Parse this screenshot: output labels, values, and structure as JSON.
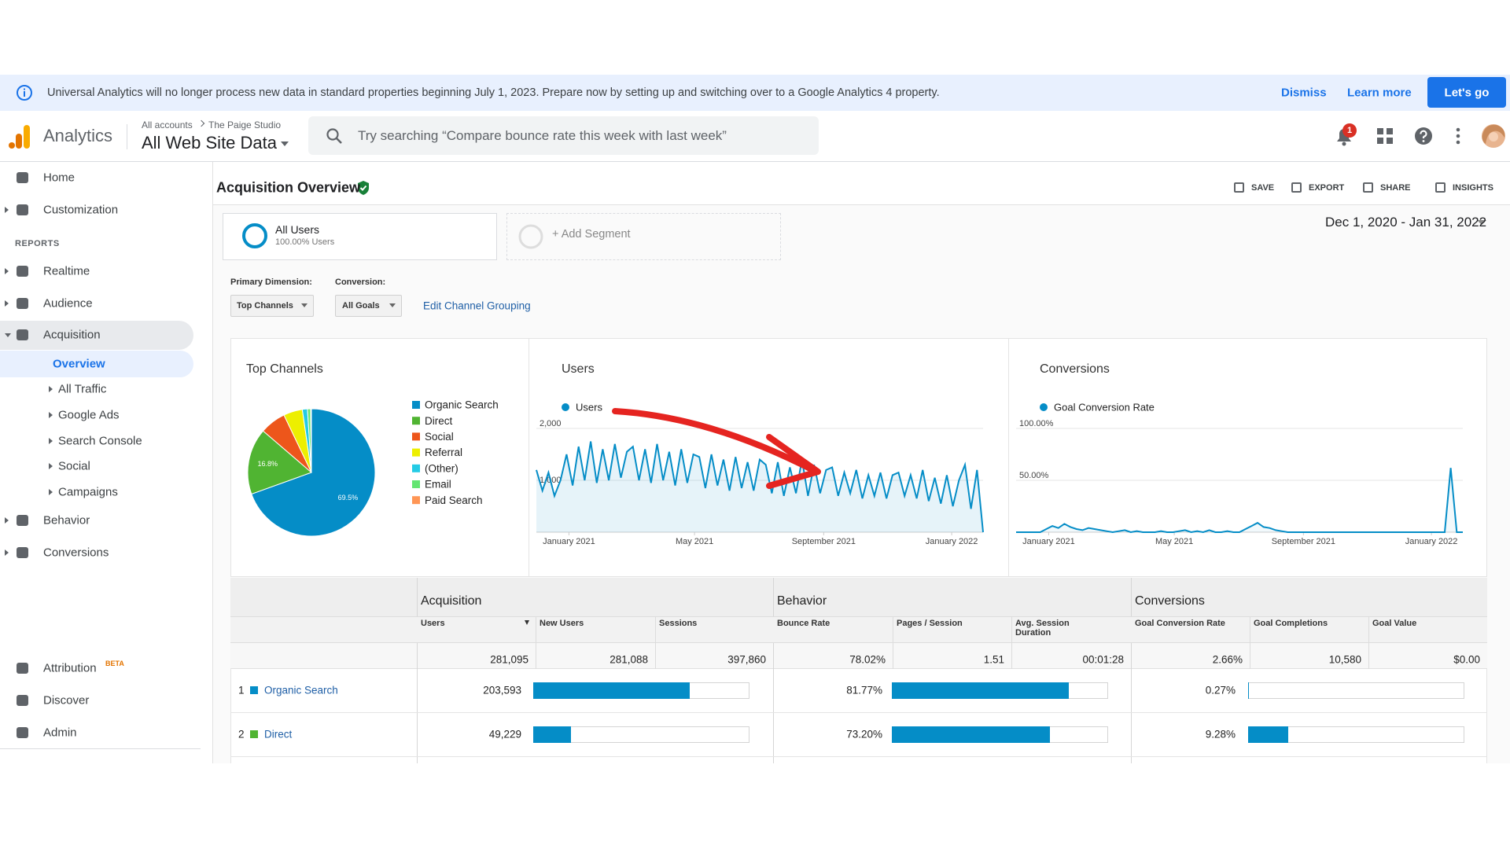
{
  "banner": {
    "message": "Universal Analytics will no longer process new data in standard properties beginning July 1, 2023. Prepare now by setting up and switching over to a Google Analytics 4 property.",
    "dismiss": "Dismiss",
    "learn_more": "Learn more",
    "cta": "Let's go"
  },
  "header": {
    "product": "Analytics",
    "breadcrumb": [
      "All accounts",
      "The Paige Studio"
    ],
    "property": "All Web Site Data",
    "search_placeholder": "Try searching “Compare bounce rate this week with last week”",
    "notification_count": 1
  },
  "sidebar": {
    "top": [
      "Home",
      "Customization"
    ],
    "section": "REPORTS",
    "reports": [
      "Realtime",
      "Audience",
      "Acquisition"
    ],
    "acquisition_children": [
      "Overview",
      "All Traffic",
      "Google Ads",
      "Search Console",
      "Social",
      "Campaigns"
    ],
    "more_reports": [
      "Behavior",
      "Conversions"
    ],
    "bottom": [
      "Attribution",
      "Discover",
      "Admin"
    ],
    "badge": "BETA"
  },
  "report": {
    "title": "Acquisition Overview",
    "actions": [
      "SAVE",
      "EXPORT",
      "SHARE",
      "INSIGHTS"
    ],
    "date_range": "Dec 1, 2020 - Jan 31, 2022",
    "segment": {
      "name": "All Users",
      "detail": "100.00% Users"
    },
    "add_segment": "+ Add Segment",
    "primary_dimension": {
      "label": "Primary Dimension:",
      "value": "Top Channels"
    },
    "conversion": {
      "label": "Conversion:",
      "value": "All Goals"
    },
    "edit_link": "Edit Channel Grouping"
  },
  "chart_data": [
    {
      "type": "pie",
      "title": "Top Channels",
      "categories": [
        "Organic Search",
        "Direct",
        "Social",
        "Referral",
        "(Other)",
        "Email",
        "Paid Search"
      ],
      "values": [
        69.5,
        16.8,
        6.6,
        4.8,
        1.3,
        0.8,
        0.2
      ],
      "value_labels": [
        "69.5%",
        "16.8%",
        null,
        null,
        null,
        null,
        null
      ],
      "colors": [
        "#058dc7",
        "#50b432",
        "#ed561b",
        "#edef00",
        "#24cbe5",
        "#64e572",
        "#ff9655"
      ]
    },
    {
      "type": "line",
      "title": "Users",
      "series": [
        {
          "name": "Users",
          "color": "#058dc7",
          "values": [
            1200,
            800,
            1150,
            700,
            1000,
            1500,
            900,
            1650,
            1000,
            1750,
            950,
            1600,
            1000,
            1700,
            1050,
            1550,
            1650,
            1000,
            1600,
            950,
            1700,
            1000,
            1550,
            900,
            1600,
            950,
            1500,
            1450,
            850,
            1500,
            900,
            1400,
            800,
            1450,
            850,
            1350,
            800,
            1400,
            1300,
            750,
            1350,
            700,
            1250,
            750,
            1400,
            700,
            1300,
            750,
            1200,
            1250,
            700,
            1150,
            750,
            1200,
            650,
            1100,
            700,
            1150,
            650,
            1100,
            1150,
            700,
            1100,
            650,
            1200,
            600,
            1050,
            550,
            1100,
            500,
            1000,
            1300,
            450,
            1200,
            0
          ]
        }
      ],
      "xlim": [
        0,
        74
      ],
      "xticks": [
        {
          "value": 5.4,
          "label": "January 2021"
        },
        {
          "value": 26.2,
          "label": "May 2021"
        },
        {
          "value": 47.6,
          "label": "September 2021"
        },
        {
          "value": 68.8,
          "label": "January 2022"
        }
      ],
      "ylim": [
        0,
        2000
      ],
      "yticks": [
        {
          "value": 1000,
          "label": "1,000"
        },
        {
          "value": 2000,
          "label": "2,000"
        }
      ],
      "grid": true
    },
    {
      "type": "line",
      "title": "Conversions",
      "series": [
        {
          "name": "Goal Conversion Rate",
          "color": "#058dc7",
          "values": [
            0,
            0,
            0,
            0,
            0,
            3,
            6,
            4,
            8,
            5,
            3,
            2,
            4,
            3,
            2,
            1,
            0,
            1,
            2,
            0,
            1,
            0,
            0,
            0,
            1,
            0,
            0,
            1,
            2,
            0,
            1,
            0,
            2,
            0,
            0,
            1,
            0,
            0,
            3,
            6,
            9,
            5,
            4,
            2,
            1,
            0,
            0,
            0,
            0,
            0,
            0,
            0,
            0,
            0,
            0,
            0,
            0,
            0,
            0,
            0,
            0,
            0,
            0,
            0,
            0,
            0,
            0,
            0,
            0,
            0,
            0,
            0,
            62,
            0,
            0
          ]
        }
      ],
      "xlim": [
        0,
        74
      ],
      "xticks": [
        {
          "value": 5.4,
          "label": "January 2021"
        },
        {
          "value": 26.2,
          "label": "May 2021"
        },
        {
          "value": 47.6,
          "label": "September 2021"
        },
        {
          "value": 68.8,
          "label": "January 2022"
        }
      ],
      "ylim": [
        0,
        100
      ],
      "yticks": [
        {
          "value": 50,
          "label": "50.00%"
        },
        {
          "value": 100,
          "label": "100.00%"
        }
      ],
      "grid": true
    }
  ],
  "report_table": {
    "groups": [
      "Acquisition",
      "Behavior",
      "Conversions"
    ],
    "columns": [
      "Users",
      "New Users",
      "Sessions",
      "Bounce Rate",
      "Pages / Session",
      "Avg. Session Duration",
      "Goal Conversion Rate",
      "Goal Completions",
      "Goal Value"
    ],
    "totals": [
      {
        "value": 281095,
        "label": "281,095"
      },
      "281,088",
      "397,860",
      "78.02%",
      "1.51",
      "00:01:28",
      "2.66%",
      "10,580",
      "$0.00"
    ],
    "bounce_rate_bar_lim": [
      0,
      100
    ],
    "goal_conversion_rate_bar_lim": [
      0,
      50
    ],
    "rows": [
      {
        "rank": 1,
        "channel": "Organic Search",
        "color": "#058dc7",
        "users": {
          "value": 203593,
          "label": "203,593"
        },
        "bounce_rate": {
          "value": 81.77,
          "label": "81.77%"
        },
        "goal_conversion_rate": {
          "value": 0.27,
          "label": "0.27%"
        }
      },
      {
        "rank": 2,
        "channel": "Direct",
        "color": "#50b432",
        "users": {
          "value": 49229,
          "label": "49,229"
        },
        "bounce_rate": {
          "value": 73.2,
          "label": "73.20%"
        },
        "goal_conversion_rate": {
          "value": 9.28,
          "label": "9.28%"
        }
      }
    ]
  }
}
